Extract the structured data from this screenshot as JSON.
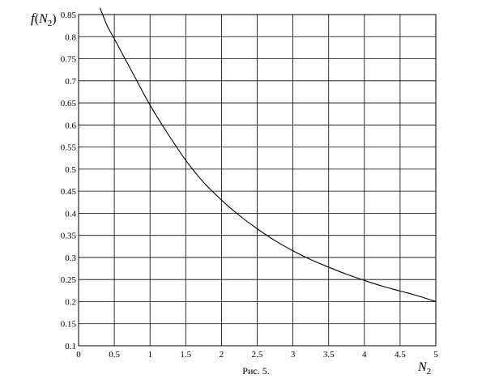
{
  "chart_data": {
    "type": "line",
    "title": "",
    "ylabel": {
      "func": "f",
      "open": "(",
      "var": "N",
      "sub": "2",
      "close": ")"
    },
    "xlabel": {
      "var": "N",
      "sub": "2"
    },
    "caption": "Рис. 5.",
    "xlim": [
      0,
      5
    ],
    "ylim": [
      0.1,
      0.85
    ],
    "xticks": [
      {
        "v": 0,
        "label": "0"
      },
      {
        "v": 0.5,
        "label": "0.5"
      },
      {
        "v": 1,
        "label": "1"
      },
      {
        "v": 1.5,
        "label": "1.5"
      },
      {
        "v": 2,
        "label": "2"
      },
      {
        "v": 2.5,
        "label": "2.5"
      },
      {
        "v": 3,
        "label": "3"
      },
      {
        "v": 3.5,
        "label": "3.5"
      },
      {
        "v": 4,
        "label": "4"
      },
      {
        "v": 4.5,
        "label": "4.5"
      },
      {
        "v": 5,
        "label": "5"
      }
    ],
    "yticks": [
      {
        "v": 0.1,
        "label": "0.1"
      },
      {
        "v": 0.15,
        "label": "0.15"
      },
      {
        "v": 0.2,
        "label": "0.2"
      },
      {
        "v": 0.25,
        "label": "0.25"
      },
      {
        "v": 0.3,
        "label": "0.3"
      },
      {
        "v": 0.35,
        "label": "0.35"
      },
      {
        "v": 0.4,
        "label": "0.4"
      },
      {
        "v": 0.45,
        "label": "0.45"
      },
      {
        "v": 0.5,
        "label": "0.5"
      },
      {
        "v": 0.55,
        "label": "0.55"
      },
      {
        "v": 0.6,
        "label": "0.6"
      },
      {
        "v": 0.65,
        "label": "0.65"
      },
      {
        "v": 0.7,
        "label": "0.7"
      },
      {
        "v": 0.75,
        "label": "0.75"
      },
      {
        "v": 0.8,
        "label": "0.8"
      },
      {
        "v": 0.85,
        "label": "0.85"
      }
    ],
    "grid": true,
    "series": [
      {
        "color": "#000000",
        "x": [
          0.3,
          0.4,
          0.5,
          0.6,
          0.75,
          1.0,
          1.25,
          1.5,
          1.75,
          2.0,
          2.25,
          2.5,
          2.75,
          3.0,
          3.25,
          3.5,
          3.75,
          4.0,
          4.25,
          4.5,
          4.75,
          5.0
        ],
        "y": [
          0.865,
          0.825,
          0.795,
          0.765,
          0.72,
          0.645,
          0.58,
          0.52,
          0.47,
          0.43,
          0.395,
          0.365,
          0.338,
          0.315,
          0.295,
          0.278,
          0.262,
          0.248,
          0.235,
          0.224,
          0.213,
          0.2
        ]
      }
    ]
  }
}
